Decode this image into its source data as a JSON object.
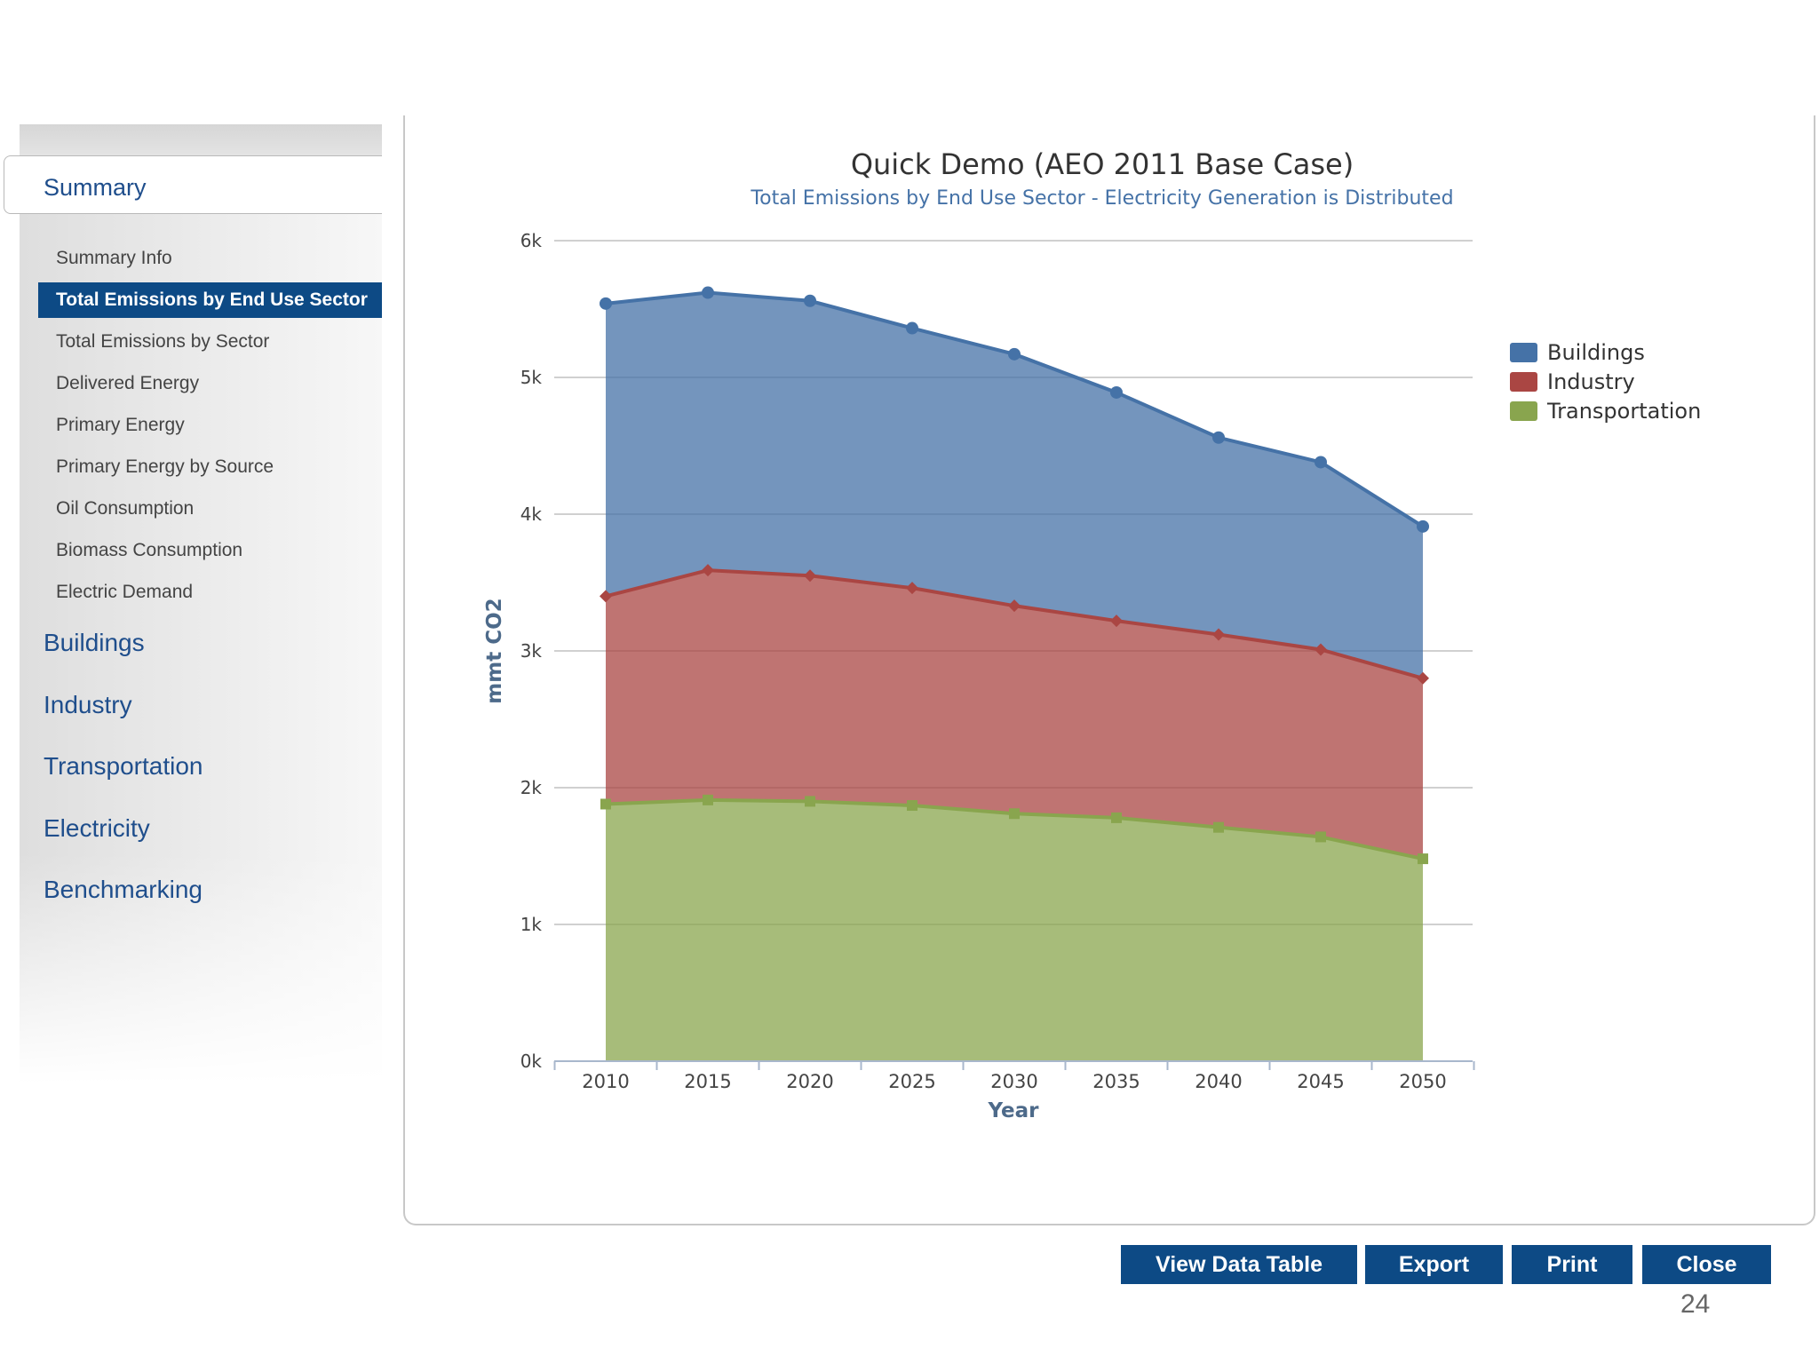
{
  "sidebar": {
    "summary_label": "Summary",
    "sub_items": [
      {
        "label": "Summary Info",
        "active": false
      },
      {
        "label": "Total Emissions by End Use Sector",
        "active": true
      },
      {
        "label": "Total Emissions by Sector",
        "active": false
      },
      {
        "label": "Delivered Energy",
        "active": false
      },
      {
        "label": "Primary Energy",
        "active": false
      },
      {
        "label": "Primary Energy by Source",
        "active": false
      },
      {
        "label": "Oil Consumption",
        "active": false
      },
      {
        "label": "Biomass Consumption",
        "active": false
      },
      {
        "label": "Electric Demand",
        "active": false
      }
    ],
    "main_items": [
      "Buildings",
      "Industry",
      "Transportation",
      "Electricity",
      "Benchmarking"
    ]
  },
  "buttons": {
    "view_data_table": "View Data Table",
    "export": "Export",
    "print": "Print",
    "close": "Close"
  },
  "page_number": "24",
  "chart_data": {
    "type": "area",
    "stacked": true,
    "title": "Quick Demo (AEO 2011 Base Case)",
    "subtitle": "Total Emissions by End Use Sector - Electricity Generation is Distributed",
    "xlabel": "Year",
    "ylabel": "mmt CO2",
    "x": [
      2010,
      2015,
      2020,
      2025,
      2030,
      2035,
      2040,
      2045,
      2050
    ],
    "ylim": [
      0,
      6000
    ],
    "yticks": [
      0,
      1000,
      2000,
      3000,
      4000,
      5000,
      6000
    ],
    "ytick_labels": [
      "0k",
      "1k",
      "2k",
      "3k",
      "4k",
      "5k",
      "6k"
    ],
    "grid": true,
    "legend_position": "right",
    "series": [
      {
        "name": "Buildings",
        "color": "#4572a7",
        "marker": "circle",
        "values": [
          2140,
          2030,
          2010,
          1900,
          1840,
          1670,
          1440,
          1370,
          1110
        ]
      },
      {
        "name": "Industry",
        "color": "#aa4643",
        "marker": "diamond",
        "values": [
          1520,
          1680,
          1650,
          1590,
          1520,
          1440,
          1410,
          1370,
          1320
        ]
      },
      {
        "name": "Transportation",
        "color": "#89a54e",
        "marker": "square",
        "values": [
          1880,
          1910,
          1900,
          1870,
          1810,
          1780,
          1710,
          1640,
          1480
        ]
      }
    ]
  }
}
